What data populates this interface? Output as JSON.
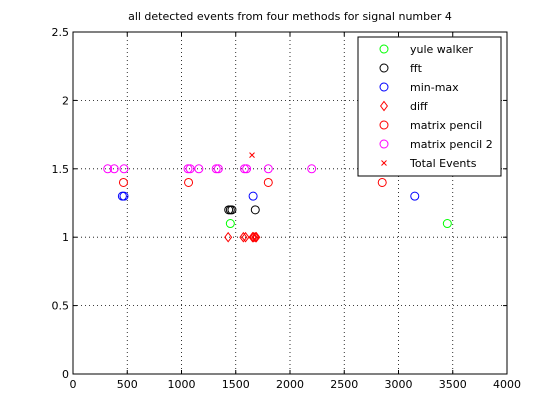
{
  "chart_data": {
    "type": "scatter",
    "title": "all detected events from four methods for signal number 4",
    "xlim": [
      0,
      4000
    ],
    "ylim": [
      0,
      2.5
    ],
    "xticks": [
      0,
      500,
      1000,
      1500,
      2000,
      2500,
      3000,
      3500,
      4000
    ],
    "yticks": [
      0,
      0.5,
      1,
      1.5,
      2,
      2.5
    ],
    "xtick_labels": [
      "0",
      "500",
      "1000",
      "1500",
      "2000",
      "2500",
      "3000",
      "3500",
      "4000"
    ],
    "ytick_labels": [
      "0",
      "0.5",
      "1",
      "1.5",
      "2",
      "2.5"
    ],
    "grid": true,
    "legend_position": "top-right",
    "series": [
      {
        "name": "yule walker",
        "marker": "circle",
        "color": "#00ff00",
        "x": [
          1450,
          3450
        ],
        "y": [
          1.1,
          1.1
        ]
      },
      {
        "name": "fft",
        "marker": "circle",
        "color": "#000000",
        "x": [
          1435,
          1450,
          1465,
          1680
        ],
        "y": [
          1.2,
          1.2,
          1.2,
          1.2
        ]
      },
      {
        "name": "min-max",
        "marker": "circle",
        "color": "#0000ff",
        "x": [
          455,
          470,
          1660,
          3150
        ],
        "y": [
          1.3,
          1.3,
          1.3,
          1.3
        ]
      },
      {
        "name": "diff",
        "marker": "diamond",
        "color": "#ff0000",
        "x": [
          1430,
          1570,
          1590,
          1655,
          1665,
          1680,
          1690
        ],
        "y": [
          1.0,
          1.0,
          1.0,
          1.0,
          1.0,
          1.0,
          1.0
        ]
      },
      {
        "name": "matrix pencil",
        "marker": "circle",
        "color": "#ff0000",
        "x": [
          465,
          1065,
          1800,
          2850
        ],
        "y": [
          1.4,
          1.4,
          1.4,
          1.4
        ]
      },
      {
        "name": "matrix pencil 2",
        "marker": "circle",
        "color": "#ff00ff",
        "x": [
          320,
          380,
          470,
          1060,
          1080,
          1160,
          1320,
          1340,
          1580,
          1600,
          1800,
          2200
        ],
        "y": [
          1.5,
          1.5,
          1.5,
          1.5,
          1.5,
          1.5,
          1.5,
          1.5,
          1.5,
          1.5,
          1.5,
          1.5
        ]
      },
      {
        "name": "Total Events",
        "marker": "x",
        "color": "#ff0000",
        "x": [
          1650
        ],
        "y": [
          1.6
        ]
      }
    ]
  }
}
